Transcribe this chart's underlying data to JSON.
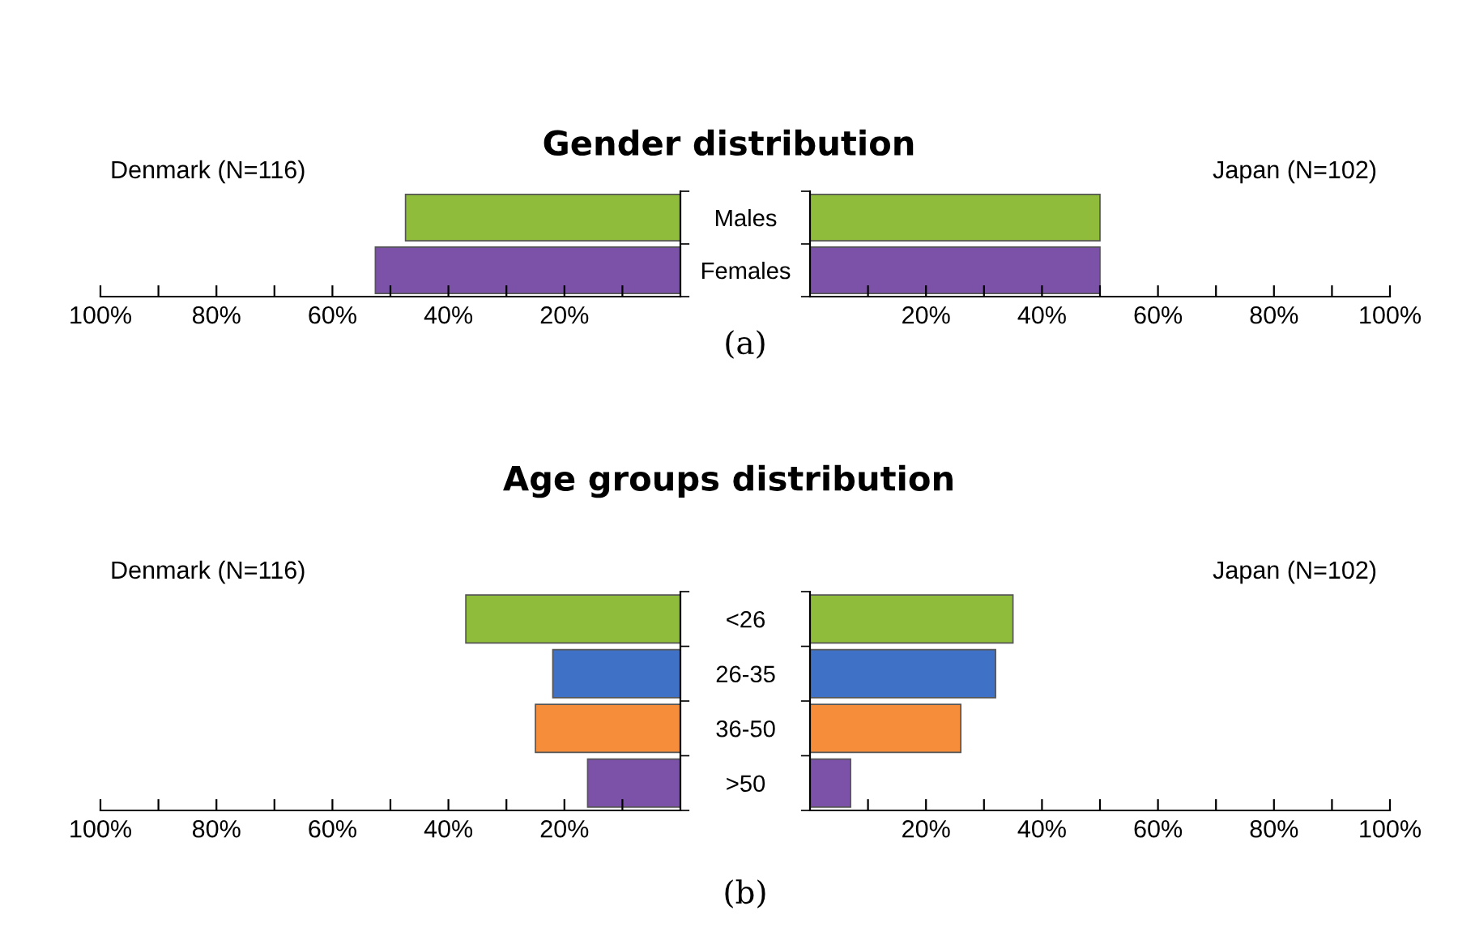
{
  "chart_data": [
    {
      "type": "bar",
      "orientation": "horizontal",
      "title": "Gender distribution",
      "categories": [
        "Males",
        "Females"
      ],
      "values": [
        47.4,
        52.6
      ],
      "colors": [
        "#8fbc3a",
        "#7b52a8"
      ],
      "xlim": [
        100,
        0
      ],
      "xticks": [
        {
          "value": 100,
          "label": "100%"
        },
        {
          "value": 90,
          "label": null
        },
        {
          "value": 80,
          "label": "80%"
        },
        {
          "value": 70,
          "label": null
        },
        {
          "value": 60,
          "label": "60%"
        },
        {
          "value": 50,
          "label": null
        },
        {
          "value": 40,
          "label": "40%"
        },
        {
          "value": 30,
          "label": null
        },
        {
          "value": 20,
          "label": "20%"
        },
        {
          "value": 10,
          "label": null
        }
      ],
      "annotations": [
        "Denmark (N=116)",
        "(a)"
      ]
    },
    {
      "type": "bar",
      "orientation": "horizontal",
      "categories": [
        null,
        null
      ],
      "values": [
        50,
        50
      ],
      "colors": [
        "#8fbc3a",
        "#7b52a8"
      ],
      "xlim": [
        0,
        100
      ],
      "xticks": [
        {
          "value": 10,
          "label": null
        },
        {
          "value": 20,
          "label": "20%"
        },
        {
          "value": 30,
          "label": null
        },
        {
          "value": 40,
          "label": "40%"
        },
        {
          "value": 50,
          "label": null
        },
        {
          "value": 60,
          "label": "60%"
        },
        {
          "value": 70,
          "label": null
        },
        {
          "value": 80,
          "label": "80%"
        },
        {
          "value": 90,
          "label": null
        },
        {
          "value": 100,
          "label": "100%"
        }
      ],
      "tick_labels": "x",
      "annotations": [
        "Japan (N=102)"
      ]
    },
    {
      "type": "bar",
      "orientation": "horizontal",
      "title": "Age groups distribution",
      "categories": [
        "<26",
        "26-35",
        "36-50",
        ">50"
      ],
      "values": [
        37,
        22,
        25,
        16
      ],
      "colors": [
        "#8fbc3a",
        "#3f72c6",
        "#f58d3a",
        "#7b52a8"
      ],
      "xlim": [
        100,
        0
      ],
      "xticks": [
        {
          "value": 100,
          "label": "100%"
        },
        {
          "value": 90,
          "label": null
        },
        {
          "value": 80,
          "label": "80%"
        },
        {
          "value": 70,
          "label": null
        },
        {
          "value": 60,
          "label": "60%"
        },
        {
          "value": 50,
          "label": null
        },
        {
          "value": 40,
          "label": "40%"
        },
        {
          "value": 30,
          "label": null
        },
        {
          "value": 20,
          "label": "20%"
        },
        {
          "value": 10,
          "label": null
        }
      ],
      "annotations": [
        "Denmark (N=116)",
        "(b)"
      ]
    },
    {
      "type": "bar",
      "orientation": "horizontal",
      "categories": [
        null,
        null,
        null,
        null
      ],
      "values": [
        35,
        32,
        26,
        7
      ],
      "colors": [
        "#8fbc3a",
        "#3f72c6",
        "#f58d3a",
        "#7b52a8"
      ],
      "xlim": [
        0,
        100
      ],
      "xticks": [
        {
          "value": 10,
          "label": null
        },
        {
          "value": 20,
          "label": "20%"
        },
        {
          "value": 30,
          "label": null
        },
        {
          "value": 40,
          "label": "40%"
        },
        {
          "value": 50,
          "label": null
        },
        {
          "value": 60,
          "label": "60%"
        },
        {
          "value": 70,
          "label": null
        },
        {
          "value": 80,
          "label": "80%"
        },
        {
          "value": 90,
          "label": null
        },
        {
          "value": 100,
          "label": "100%"
        }
      ],
      "tick_labels": "x",
      "annotations": [
        "Japan (N=102)"
      ]
    }
  ]
}
